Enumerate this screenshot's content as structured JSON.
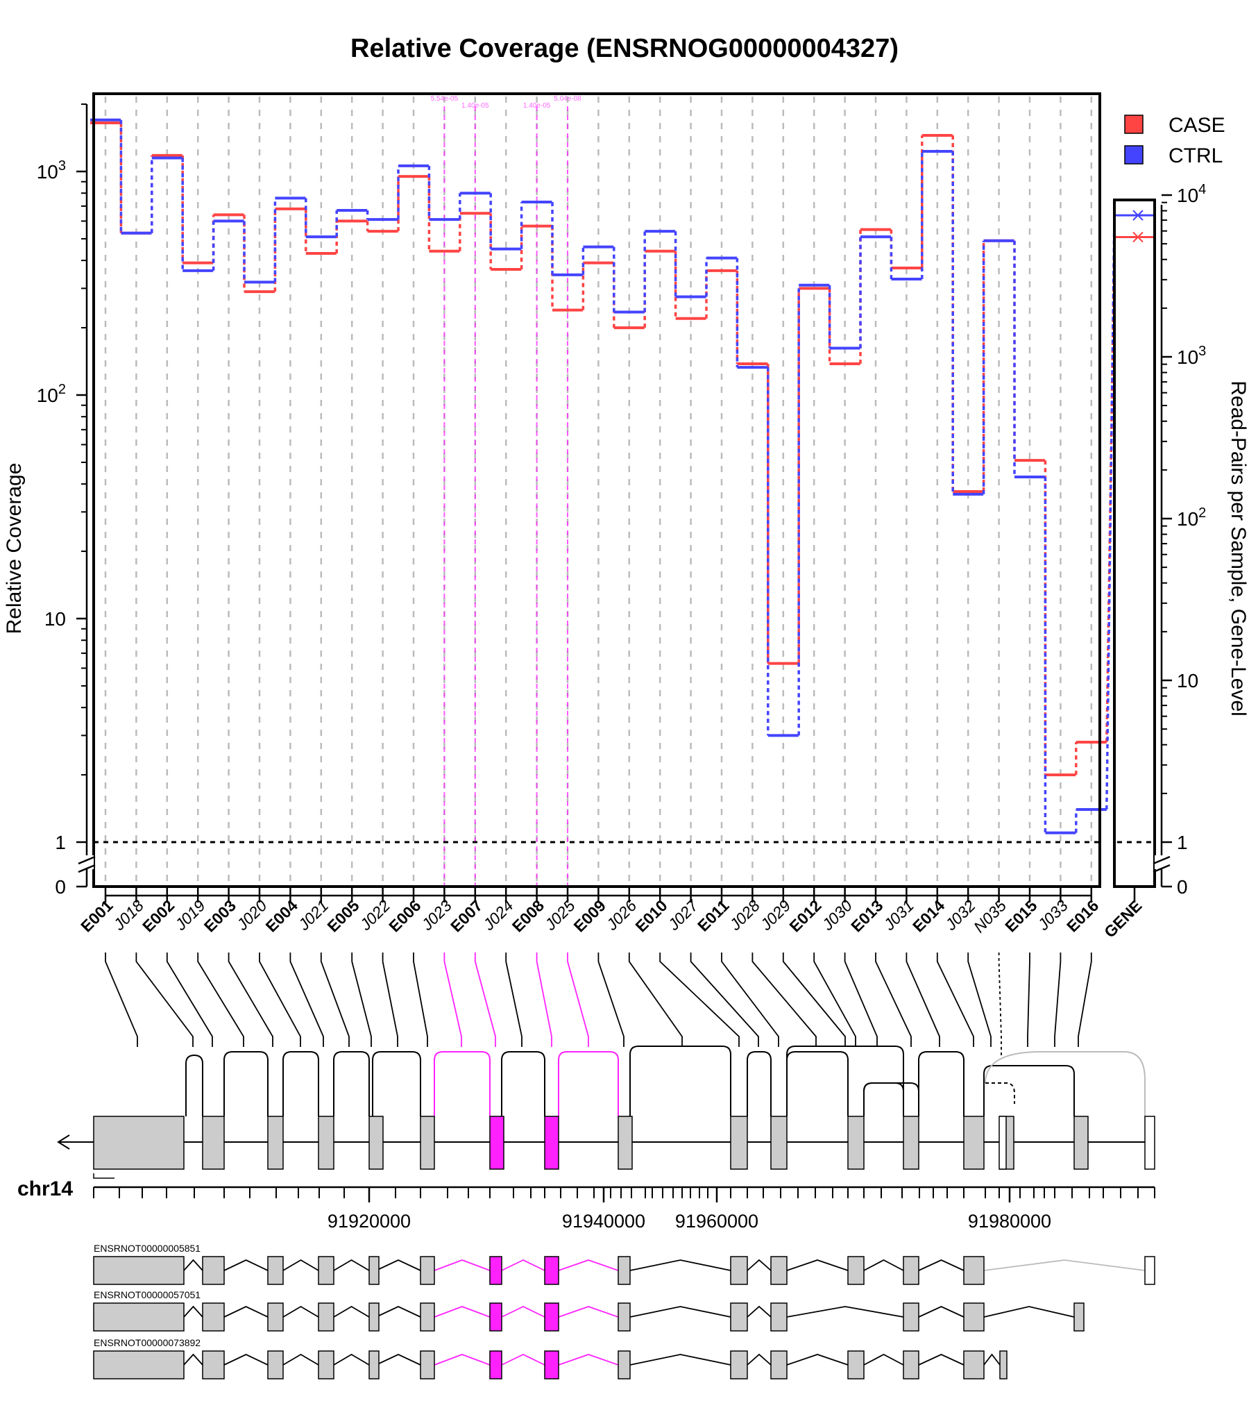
{
  "title": "Relative Coverage (ENSRNOG00000004327)",
  "y_label_left": "Relative Coverage",
  "y_label_right": "Read-Pairs per Sample, Gene-Level",
  "chrom_label": "chr14",
  "colors": {
    "case": "#ff4444",
    "ctrl": "#4444ff",
    "sig": "#ff22ff",
    "grid": "#bbbbbb",
    "exon": "#cccccc"
  },
  "legend": [
    {
      "name": "CASE",
      "color": "#ff4444"
    },
    {
      "name": "CTRL",
      "color": "#4444ff"
    }
  ],
  "chart_data": {
    "type": "line",
    "y_scale": "log",
    "ylim": [
      1,
      2000
    ],
    "y_ticks": [
      {
        "value": 1,
        "label": "1"
      },
      {
        "value": 10,
        "label": "10"
      },
      {
        "value": 100,
        "label": "10²"
      },
      {
        "value": 1000,
        "label": "10³"
      }
    ],
    "y_zero_label": "0",
    "categories": [
      "E001",
      "J018",
      "E002",
      "J019",
      "E003",
      "J020",
      "E004",
      "J021",
      "E005",
      "J022",
      "E006",
      "J023",
      "E007",
      "J024",
      "E008",
      "J025",
      "E009",
      "J026",
      "E010",
      "J027",
      "E011",
      "J028",
      "J029",
      "E012",
      "J030",
      "E013",
      "J031",
      "E014",
      "J032",
      "N035",
      "E015",
      "J033",
      "E016"
    ],
    "category_kind": [
      "exon",
      "junction",
      "exon",
      "junction",
      "exon",
      "junction",
      "exon",
      "junction",
      "exon",
      "junction",
      "exon",
      "junction",
      "exon",
      "junction",
      "exon",
      "junction",
      "exon",
      "junction",
      "exon",
      "junction",
      "exon",
      "junction",
      "junction",
      "exon",
      "junction",
      "exon",
      "junction",
      "exon",
      "junction",
      "junction",
      "exon",
      "junction",
      "exon"
    ],
    "series": [
      {
        "name": "CASE",
        "values": [
          1650,
          530,
          1180,
          390,
          640,
          290,
          680,
          430,
          600,
          540,
          950,
          440,
          650,
          365,
          570,
          240,
          390,
          200,
          440,
          220,
          360,
          138,
          6.3,
          300,
          138,
          550,
          370,
          1450,
          37,
          490,
          51,
          2.0,
          2.8
        ]
      },
      {
        "name": "CTRL",
        "values": [
          1700,
          530,
          1150,
          360,
          600,
          320,
          760,
          510,
          670,
          610,
          1060,
          610,
          800,
          450,
          730,
          345,
          460,
          235,
          540,
          275,
          410,
          133,
          3.0,
          310,
          162,
          510,
          330,
          1230,
          36,
          490,
          43,
          1.1,
          1.4
        ]
      }
    ],
    "significant": [
      {
        "feature": "J023",
        "pvalue": "5.54e-05"
      },
      {
        "feature": "E007",
        "pvalue": "1.40e-05"
      },
      {
        "feature": "E008",
        "pvalue": "1.40e-05"
      },
      {
        "feature": "J025",
        "pvalue": "5.04e-08"
      }
    ],
    "gene_panel": {
      "label": "GENE",
      "ylim": [
        1,
        13000
      ],
      "y_ticks": [
        {
          "value": 1,
          "label": "1"
        },
        {
          "value": 10,
          "label": "10"
        },
        {
          "value": 100,
          "label": "10²"
        },
        {
          "value": 1000,
          "label": "10³"
        },
        {
          "value": 10000,
          "label": "10⁴"
        }
      ],
      "y_zero_label": "0",
      "values": [
        {
          "name": "CASE",
          "value": 5500
        },
        {
          "name": "CTRL",
          "value": 7500
        }
      ]
    },
    "genomic_axis": {
      "chromosome": "chr14",
      "tick_labels": [
        "91920000",
        "91940000",
        "91960000",
        "91980000"
      ]
    }
  },
  "transcripts": [
    "ENSRNOT00000005851",
    "ENSRNOT00000057051",
    "ENSRNOT00000073892"
  ]
}
